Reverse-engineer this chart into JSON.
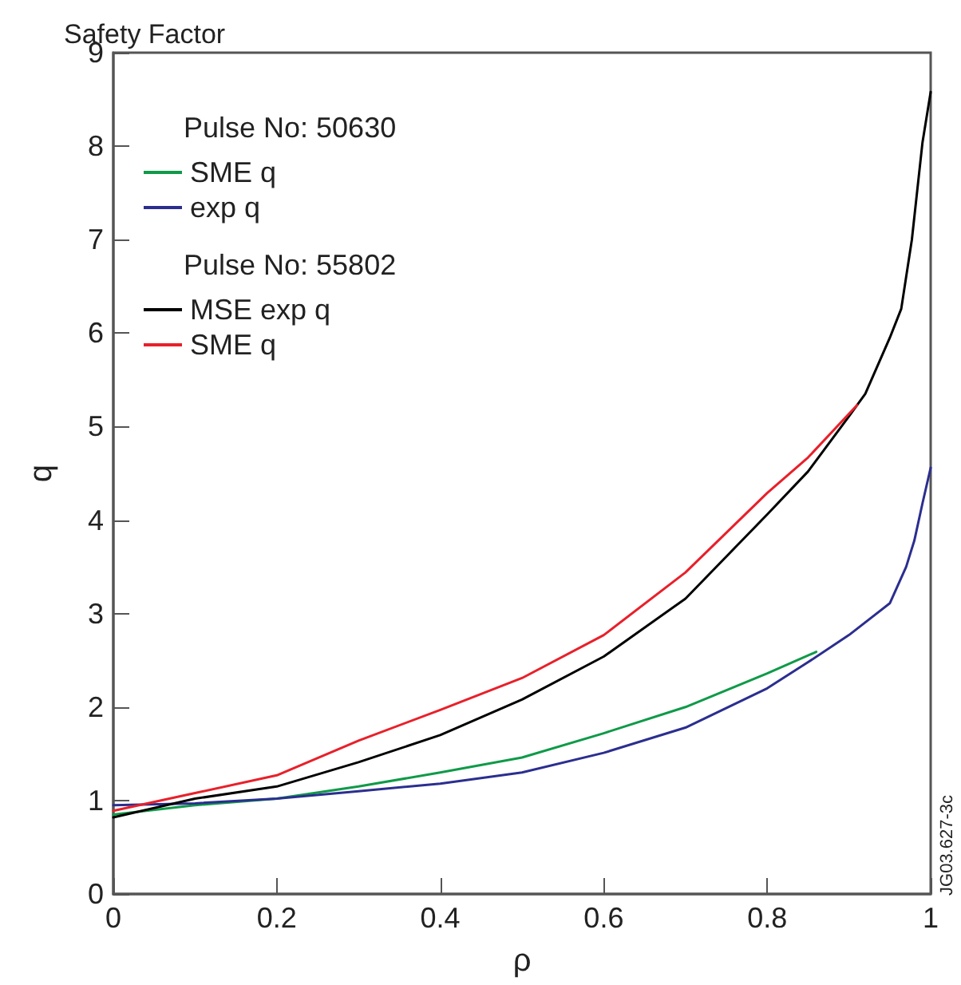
{
  "chart_data": {
    "type": "line",
    "title": "Safety Factor",
    "xlabel": "ρ",
    "ylabel": "q",
    "annotations": [
      "Pulse No: 50630",
      "Pulse No: 55802",
      "JG03.627-3c"
    ],
    "series": [
      {
        "name": "SME q",
        "color": "#0f9a48",
        "x": [
          0,
          0.1,
          0.2,
          0.3,
          0.4,
          0.5,
          0.6,
          0.7,
          0.8,
          0.86
        ],
        "values": [
          0.85,
          0.95,
          1.02,
          1.15,
          1.3,
          1.46,
          1.72,
          2.0,
          2.36,
          2.59
        ]
      },
      {
        "name": "exp q",
        "color": "#2b2e8f",
        "x": [
          0,
          0.1,
          0.2,
          0.3,
          0.4,
          0.5,
          0.6,
          0.7,
          0.8,
          0.85,
          0.9,
          0.95,
          0.97,
          0.98,
          0.99,
          1.0
        ],
        "values": [
          0.95,
          0.97,
          1.02,
          1.1,
          1.18,
          1.3,
          1.51,
          1.78,
          2.2,
          2.48,
          2.77,
          3.11,
          3.5,
          3.78,
          4.18,
          4.56
        ]
      },
      {
        "name": "MSE exp q",
        "color": "#000000",
        "x": [
          0,
          0.1,
          0.2,
          0.3,
          0.4,
          0.5,
          0.6,
          0.7,
          0.8,
          0.85,
          0.9,
          0.92,
          0.95,
          0.964,
          0.977,
          0.99,
          1.0
        ],
        "values": [
          0.82,
          1.02,
          1.15,
          1.41,
          1.7,
          2.08,
          2.54,
          3.16,
          4.06,
          4.52,
          5.11,
          5.35,
          5.95,
          6.26,
          7.0,
          8.04,
          8.58
        ]
      },
      {
        "name": "SME q",
        "color": "#e8202a",
        "x": [
          0,
          0.1,
          0.2,
          0.3,
          0.4,
          0.5,
          0.6,
          0.7,
          0.8,
          0.85,
          0.91
        ],
        "values": [
          0.89,
          1.08,
          1.27,
          1.64,
          1.97,
          2.31,
          2.77,
          3.44,
          4.29,
          4.67,
          5.23
        ]
      }
    ],
    "xlim": [
      0,
      1
    ],
    "xticks": [
      0,
      0.2,
      0.4,
      0.6,
      0.8,
      1
    ],
    "ylim": [
      0,
      9
    ],
    "yticks": [
      0,
      1,
      2,
      3,
      4,
      5,
      6,
      7,
      8,
      9
    ],
    "grid": false,
    "legend": "top left",
    "marker": "none",
    "line_style": "solid"
  }
}
